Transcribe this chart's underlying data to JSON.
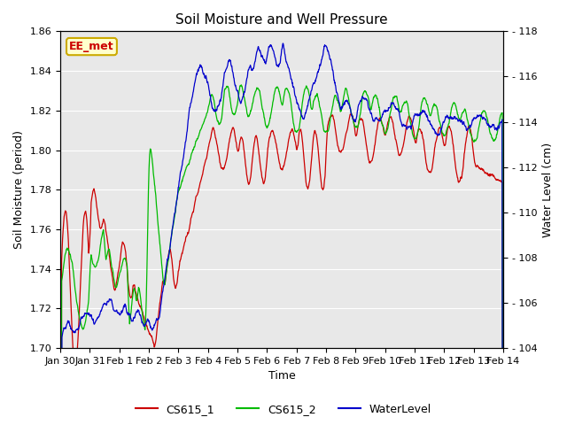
{
  "title": "Soil Moisture and Well Pressure",
  "xlabel": "Time",
  "ylabel_left": "Soil Moisture (period)",
  "ylabel_right": "Water Level (cm)",
  "ylim_left": [
    1.7,
    1.86
  ],
  "ylim_right": [
    104,
    118
  ],
  "yticks_left": [
    1.7,
    1.72,
    1.74,
    1.76,
    1.78,
    1.8,
    1.82,
    1.84,
    1.86
  ],
  "yticks_right": [
    104,
    106,
    108,
    110,
    112,
    114,
    116,
    118
  ],
  "xtick_labels": [
    "Jan 30",
    "Jan 31",
    "Feb 1",
    "Feb 2",
    "Feb 3",
    "Feb 4",
    "Feb 5",
    "Feb 6",
    "Feb 7",
    "Feb 8",
    "Feb 9",
    "Feb 10",
    "Feb 11",
    "Feb 12",
    "Feb 13",
    "Feb 14"
  ],
  "color_cs615_1": "#cc0000",
  "color_cs615_2": "#00bb00",
  "color_waterlevel": "#0000cc",
  "background_color": "#e8e8e8",
  "annotation_text": "EE_met",
  "annotation_bg": "#ffffcc",
  "annotation_border": "#ccaa00",
  "legend_labels": [
    "CS615_1",
    "CS615_2",
    "WaterLevel"
  ],
  "title_fontsize": 11,
  "axis_fontsize": 9,
  "tick_fontsize": 8
}
